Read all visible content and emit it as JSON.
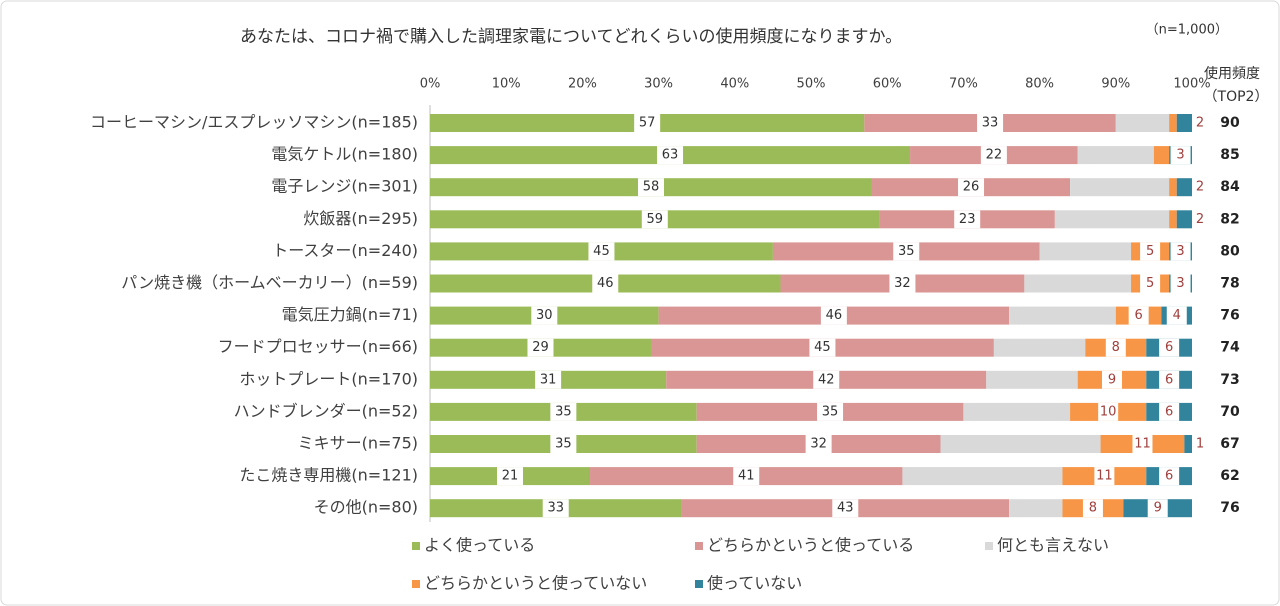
{
  "chart_data": {
    "type": "stacked_bar_100",
    "title": "あなたは、コロナ禍で購入した調理家電についてどれくらいの使用頻度になりますか。",
    "note": "（n=1,000）",
    "right_header": [
      "使用頻度",
      "（TOP2）"
    ],
    "categories": [
      "コーヒーマシン/エスプレッソマシン(n=185)",
      "電気ケトル(n=180)",
      "電子レンジ(n=301)",
      "炊飯器(n=295)",
      "トースター(n=240)",
      "パン焼き機（ホームベーカリー）(n=59)",
      "電気圧力鍋(n=71)",
      "フードプロセッサー(n=66)",
      "ホットプレート(n=170)",
      "ハンドブレンダー(n=52)",
      "ミキサー(n=75)",
      "たこ焼き専用機(n=121)",
      "その他(n=80)"
    ],
    "series": [
      {
        "name": "よく使っている",
        "color": "#9bbb59",
        "labeled": true,
        "values": [
          57,
          63,
          58,
          59,
          45,
          46,
          30,
          29,
          31,
          35,
          35,
          21,
          33
        ]
      },
      {
        "name": "どちらかというと使っている",
        "color": "#d99694",
        "labeled": true,
        "values": [
          33,
          22,
          26,
          23,
          35,
          32,
          46,
          45,
          42,
          35,
          32,
          41,
          43
        ]
      },
      {
        "name": "何とも言えない",
        "color": "#d9d9d9",
        "labeled": false,
        "values": [
          7,
          10,
          13,
          15,
          12,
          14,
          14,
          12,
          12,
          14,
          21,
          21,
          7
        ]
      },
      {
        "name": "どちらかというと使っていない",
        "color": "#f79646",
        "labeled": true,
        "values": [
          1,
          2,
          1,
          1,
          5,
          5,
          6,
          8,
          9,
          10,
          11,
          11,
          8
        ]
      },
      {
        "name": "使っていない",
        "color": "#31849b",
        "labeled": true,
        "values": [
          2,
          3,
          2,
          2,
          3,
          3,
          4,
          6,
          6,
          6,
          1,
          6,
          9
        ]
      }
    ],
    "top2": [
      90,
      85,
      84,
      82,
      80,
      78,
      76,
      74,
      73,
      70,
      67,
      62,
      76
    ],
    "xlim": [
      0,
      100
    ],
    "xticks": [
      {
        "value": 0,
        "label": "0%"
      },
      {
        "value": 10,
        "label": "10%"
      },
      {
        "value": 20,
        "label": "20%"
      },
      {
        "value": 30,
        "label": "30%"
      },
      {
        "value": 40,
        "label": "40%"
      },
      {
        "value": 50,
        "label": "50%"
      },
      {
        "value": 60,
        "label": "60%"
      },
      {
        "value": 70,
        "label": "70%"
      },
      {
        "value": 80,
        "label": "80%"
      },
      {
        "value": 90,
        "label": "90%"
      },
      {
        "value": 100,
        "label": "100%"
      }
    ]
  }
}
